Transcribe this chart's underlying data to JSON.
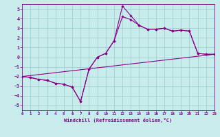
{
  "xlabel": "Windchill (Refroidissement éolien,°C)",
  "bg_color": "#c8ecec",
  "line_color": "#880088",
  "grid_color": "#99cccc",
  "xlim": [
    0,
    23
  ],
  "ylim": [
    -5.5,
    5.5
  ],
  "yticks": [
    -5,
    -4,
    -3,
    -2,
    -1,
    0,
    1,
    2,
    3,
    4,
    5
  ],
  "xticks": [
    0,
    1,
    2,
    3,
    4,
    5,
    6,
    7,
    8,
    9,
    10,
    11,
    12,
    13,
    14,
    15,
    16,
    17,
    18,
    19,
    20,
    21,
    22,
    23
  ],
  "curve_zigzag_x": [
    0,
    1,
    2,
    3,
    4,
    5,
    6,
    7,
    8,
    9,
    10,
    11,
    12,
    13,
    14,
    15,
    16,
    17,
    18,
    19,
    20,
    21,
    22,
    23
  ],
  "curve_zigzag_y": [
    -2.0,
    -2.1,
    -2.3,
    -2.4,
    -2.7,
    -2.8,
    -3.1,
    -4.6,
    -1.25,
    0.0,
    0.4,
    1.7,
    5.3,
    4.3,
    3.3,
    2.9,
    2.9,
    3.0,
    2.7,
    2.8,
    2.7,
    0.4,
    0.3,
    0.3
  ],
  "curve_smooth_x": [
    0,
    1,
    2,
    3,
    4,
    5,
    6,
    7,
    8,
    9,
    10,
    11,
    12,
    13,
    14,
    15,
    16,
    17,
    18,
    19,
    20,
    21,
    22,
    23
  ],
  "curve_smooth_y": [
    -2.0,
    -2.1,
    -2.3,
    -2.4,
    -2.7,
    -2.8,
    -3.1,
    -4.6,
    -1.25,
    0.0,
    0.4,
    1.7,
    4.2,
    3.9,
    3.3,
    2.9,
    2.9,
    3.0,
    2.7,
    2.8,
    2.7,
    0.4,
    0.3,
    0.3
  ],
  "line_x": [
    0,
    23
  ],
  "line_y": [
    -2.0,
    0.3
  ],
  "marker": "D",
  "markersize": 1.8,
  "linewidth": 0.8
}
